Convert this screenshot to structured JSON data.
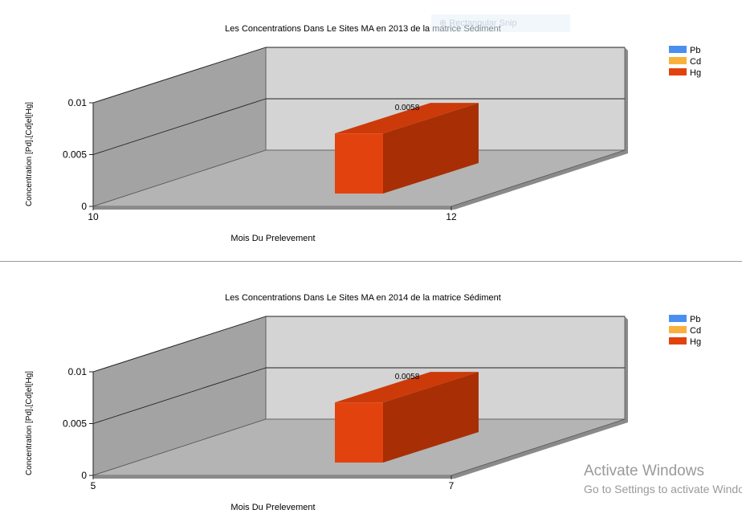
{
  "colors": {
    "Pb": "#4a8ff0",
    "Cd": "#f9b13e",
    "Hg_front": "#e2430e",
    "Hg_top": "#cc3a0a",
    "Hg_side": "#a82f05",
    "back_wall": "#d4d4d4",
    "left_wall": "#a3a3a3",
    "floor": "#b4b4b4"
  },
  "overlay": {
    "ghost_text": "⊕ Rectangular Snip",
    "watermark_title": "Activate Windows",
    "watermark_sub": "Go to Settings to activate Windows."
  },
  "chart_data": [
    {
      "type": "bar",
      "title": "Les Concentrations Dans Le Sites MA  en 2013 de la matrice  Sédiment",
      "xlabel": "Mois Du Prelevement",
      "ylabel": "Concentration [Pd],[Cd]el[Hg]",
      "x_ticks": [
        "10",
        "12"
      ],
      "y_ticks": [
        "0",
        "0.005",
        "0.01"
      ],
      "ylim": [
        0,
        0.01
      ],
      "view": "3d",
      "legend_position": "top-right",
      "series": [
        {
          "name": "Pb",
          "values": [
            null
          ]
        },
        {
          "name": "Cd",
          "values": [
            null
          ]
        },
        {
          "name": "Hg",
          "values": [
            0.0058
          ]
        }
      ],
      "data_labels": [
        "0.0058"
      ]
    },
    {
      "type": "bar",
      "title": "Les Concentrations Dans Le Sites MA  en 2014 de la matrice  Sédiment",
      "xlabel": "Mois Du Prelevement",
      "ylabel": "Concentration [Pd],[Cd]el[Hg]",
      "x_ticks": [
        "5",
        "7"
      ],
      "y_ticks": [
        "0",
        "0.005",
        "0.01"
      ],
      "ylim": [
        0,
        0.01
      ],
      "view": "3d",
      "legend_position": "top-right",
      "series": [
        {
          "name": "Pb",
          "values": [
            null
          ]
        },
        {
          "name": "Cd",
          "values": [
            null
          ]
        },
        {
          "name": "Hg",
          "values": [
            0.0058
          ]
        }
      ],
      "data_labels": [
        "0.0058"
      ]
    }
  ]
}
